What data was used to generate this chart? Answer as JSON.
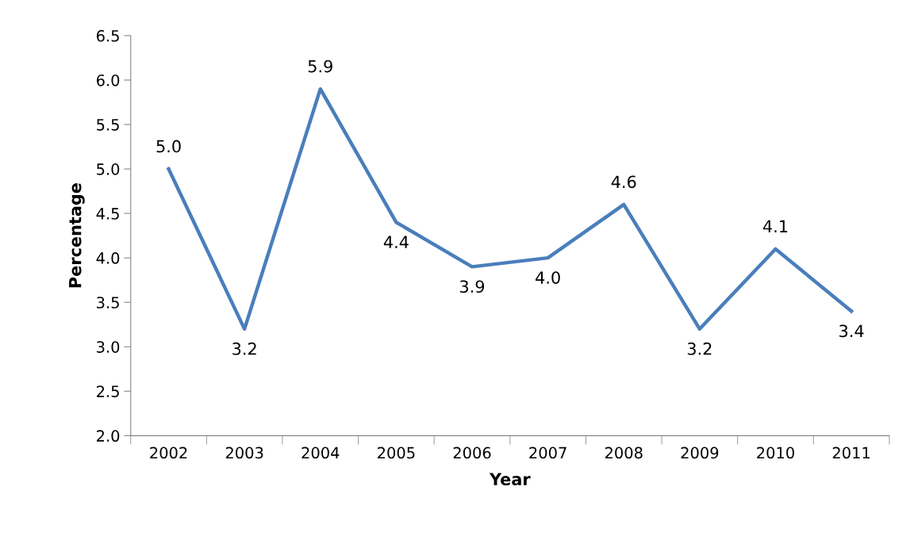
{
  "chart_data": {
    "type": "line",
    "xlabel": "Year",
    "ylabel": "Percentage",
    "categories": [
      "2002",
      "2003",
      "2004",
      "2005",
      "2006",
      "2007",
      "2008",
      "2009",
      "2010",
      "2011"
    ],
    "series": [
      {
        "color": "#4a7ebb",
        "values": [
          5.0,
          3.2,
          5.9,
          4.4,
          3.9,
          4.0,
          4.6,
          3.2,
          4.1,
          3.4
        ],
        "value_labels": [
          "5.0",
          "3.2",
          "5.9",
          "4.4",
          "3.9",
          "4.0",
          "4.6",
          "3.2",
          "4.1",
          "3.4"
        ]
      }
    ],
    "ylim": [
      2.0,
      6.5
    ],
    "yticks": [
      {
        "value": 2.0,
        "label": "2.0"
      },
      {
        "value": 2.5,
        "label": "2.5"
      },
      {
        "value": 3.0,
        "label": "3.0"
      },
      {
        "value": 3.5,
        "label": "3.5"
      },
      {
        "value": 4.0,
        "label": "4.0"
      },
      {
        "value": 4.5,
        "label": "4.5"
      },
      {
        "value": 5.0,
        "label": "5.0"
      },
      {
        "value": 5.5,
        "label": "5.5"
      },
      {
        "value": 6.0,
        "label": "6.0"
      },
      {
        "value": 6.5,
        "label": "6.5"
      }
    ],
    "grid": false,
    "legend": false,
    "marker": "none",
    "line_style": "solid"
  }
}
